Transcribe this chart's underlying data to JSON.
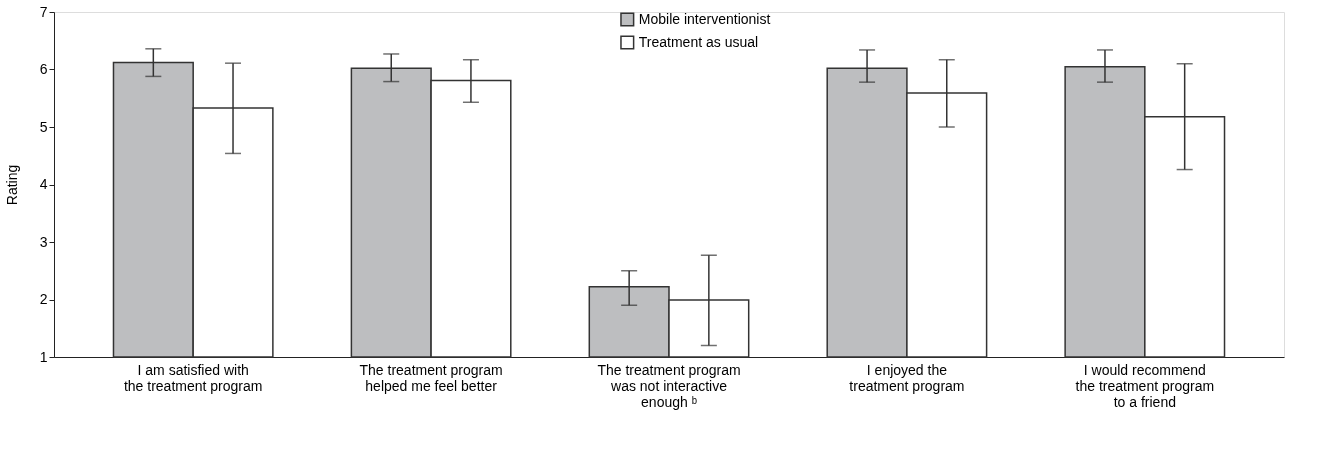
{
  "chart_data": {
    "type": "bar",
    "ylabel": "Rating",
    "categories": [
      "I am satisfied with\nthe treatment program",
      "The treatment program\nhelped me feel better",
      "The treatment program\nwas not interactive\nenough ᵇ",
      "I enjoyed the\ntreatment program",
      "I would recommend\nthe treatment program\nto a friend"
    ],
    "series": [
      {
        "name": "Mobile interventionist",
        "color": "#bdbec0",
        "values": [
          6.12,
          6.02,
          2.22,
          6.02,
          6.05
        ],
        "errors": [
          [
            5.88,
            6.36
          ],
          [
            5.79,
            6.27
          ],
          [
            1.9,
            2.5
          ],
          [
            5.78,
            6.34
          ],
          [
            5.78,
            6.34
          ]
        ]
      },
      {
        "name": "Treatment as usual",
        "color": "#ffffff",
        "values": [
          5.33,
          5.81,
          1.99,
          5.59,
          5.18
        ],
        "errors": [
          [
            4.54,
            6.11
          ],
          [
            5.43,
            6.17
          ],
          [
            1.2,
            2.77
          ],
          [
            5.0,
            6.17
          ],
          [
            4.26,
            6.1
          ]
        ]
      }
    ],
    "ylim": [
      1,
      7
    ],
    "yticks": [
      1,
      2,
      3,
      4,
      5,
      6,
      7
    ],
    "grid": false,
    "legend": "top"
  }
}
